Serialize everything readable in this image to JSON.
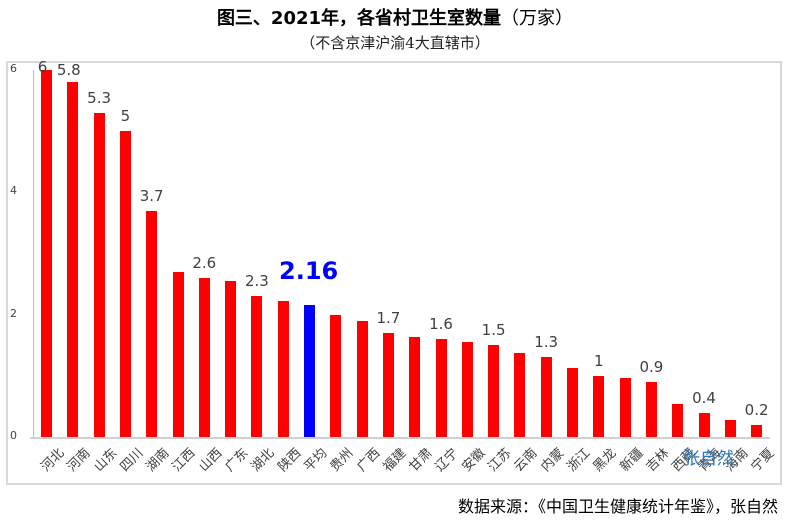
{
  "header": {
    "title": "图三、2021年，各省村卫生室数量",
    "title_unit": "（万家）",
    "subtitle": "（不含京津沪渝4大直辖市）"
  },
  "footer": {
    "source": "数据来源：《中国卫生健康统计年鉴》，张自然",
    "watermark": "张自然"
  },
  "colors": {
    "bar": "#ff0000",
    "average_bar": "#0000ff",
    "average_label": "#0000ff"
  },
  "chart_data": {
    "type": "bar",
    "title": "图三、2021年，各省村卫生室数量（万家）",
    "subtitle": "（不含京津沪渝4大直辖市）",
    "xlabel": "",
    "ylabel": "",
    "ylim": [
      0,
      6
    ],
    "yticks": [
      0,
      2,
      4,
      6
    ],
    "grid": false,
    "legend": null,
    "categories": [
      "河北",
      "河南",
      "山东",
      "四川",
      "湖南",
      "江西",
      "山西",
      "广东",
      "湖北",
      "陕西",
      "平均",
      "贵州",
      "广西",
      "福建",
      "甘肃",
      "辽宁",
      "安徽",
      "江苏",
      "云南",
      "内蒙",
      "浙江",
      "黑龙",
      "新疆",
      "吉林",
      "西藏",
      "青海",
      "海南",
      "宁夏"
    ],
    "values": [
      6.0,
      5.8,
      5.3,
      5.0,
      3.7,
      2.7,
      2.6,
      2.55,
      2.3,
      2.22,
      2.16,
      2.0,
      1.9,
      1.7,
      1.63,
      1.6,
      1.56,
      1.5,
      1.37,
      1.3,
      1.12,
      1.0,
      0.96,
      0.9,
      0.54,
      0.4,
      0.28,
      0.2
    ],
    "data_labels": [
      {
        "category": "河北",
        "text": "6"
      },
      {
        "category": "河南",
        "text": "5.8"
      },
      {
        "category": "山东",
        "text": "5.3"
      },
      {
        "category": "四川",
        "text": "5"
      },
      {
        "category": "湖南",
        "text": "3.7"
      },
      {
        "category": "山西",
        "text": "2.6"
      },
      {
        "category": "湖北",
        "text": "2.3"
      },
      {
        "category": "平均",
        "text": "2.16",
        "highlight": true
      },
      {
        "category": "福建",
        "text": "1.7"
      },
      {
        "category": "辽宁",
        "text": "1.6"
      },
      {
        "category": "江苏",
        "text": "1.5"
      },
      {
        "category": "内蒙",
        "text": "1.3"
      },
      {
        "category": "黑龙",
        "text": "1"
      },
      {
        "category": "吉林",
        "text": "0.9"
      },
      {
        "category": "青海",
        "text": "0.4"
      },
      {
        "category": "宁夏",
        "text": "0.2"
      }
    ],
    "highlight_category": "平均",
    "annotations": [
      "数据来源：《中国卫生健康统计年鉴》，张自然",
      "张自然"
    ]
  }
}
